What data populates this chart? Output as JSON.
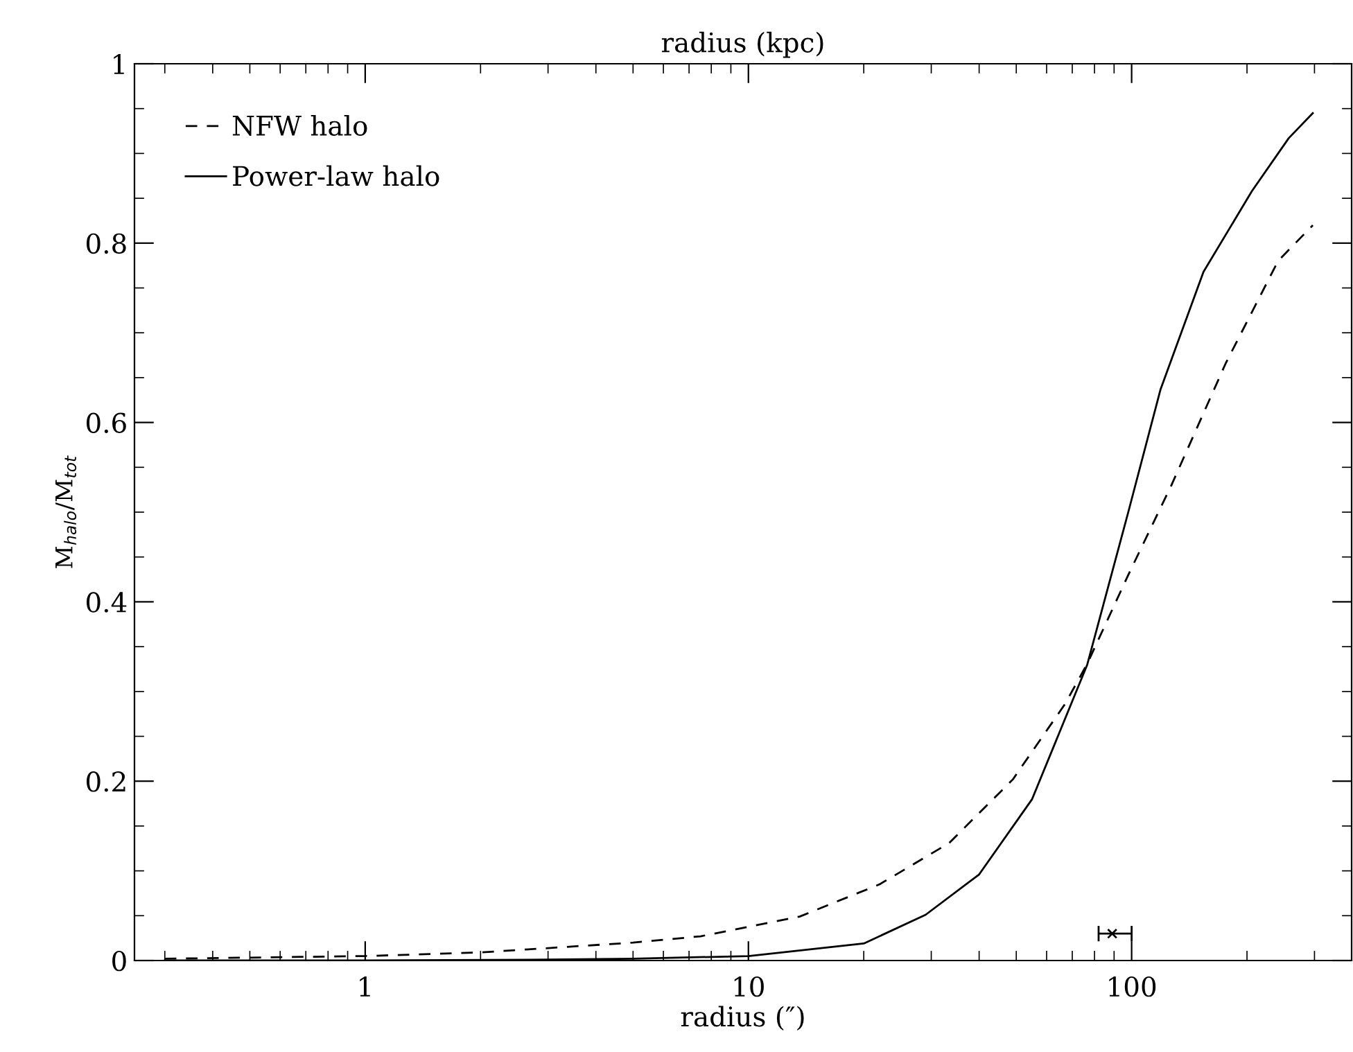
{
  "chart_data": {
    "type": "line",
    "x2label": "radius (kpc)",
    "xlabel": "radius (″)",
    "ylabel": "M$_{halo}$/M$_{tot}$",
    "log": "x",
    "xlim": [
      0.25,
      375
    ],
    "xticks": [
      1,
      10,
      100
    ],
    "ylim": [
      0,
      1
    ],
    "yticks": [
      0,
      0.2,
      0.4,
      0.6,
      0.8,
      1
    ],
    "grid": false,
    "legend": "top left",
    "series": [
      {
        "name": "NFW halo",
        "color": "#000000",
        "line_style": "dashed",
        "x": [
          0.3,
          1,
          2,
          5,
          7.5,
          13.6,
          22,
          33.4,
          49,
          67,
          76.6,
          98,
          127,
          176,
          241,
          297
        ],
        "values": [
          0.002,
          0.005,
          0.009,
          0.02,
          0.027,
          0.049,
          0.085,
          0.131,
          0.202,
          0.286,
          0.331,
          0.43,
          0.53,
          0.666,
          0.78,
          0.82
        ]
      },
      {
        "name": "Power-law halo",
        "color": "#000000",
        "line_style": "solid",
        "x": [
          0.3,
          1,
          3,
          5,
          10,
          20,
          29,
          40,
          55,
          76.6,
          98,
          119,
          154,
          206,
          257,
          297
        ],
        "values": [
          0,
          0,
          0.001,
          0.002,
          0.005,
          0.019,
          0.051,
          0.096,
          0.18,
          0.33,
          0.5,
          0.637,
          0.768,
          0.858,
          0.917,
          0.945
        ]
      },
      {
        "type": "scatter",
        "color": "#000000",
        "marker": "cross",
        "x": [
          89
        ],
        "values": [
          0.03
        ],
        "xerrors": [
          [
            82,
            100
          ]
        ]
      }
    ]
  }
}
